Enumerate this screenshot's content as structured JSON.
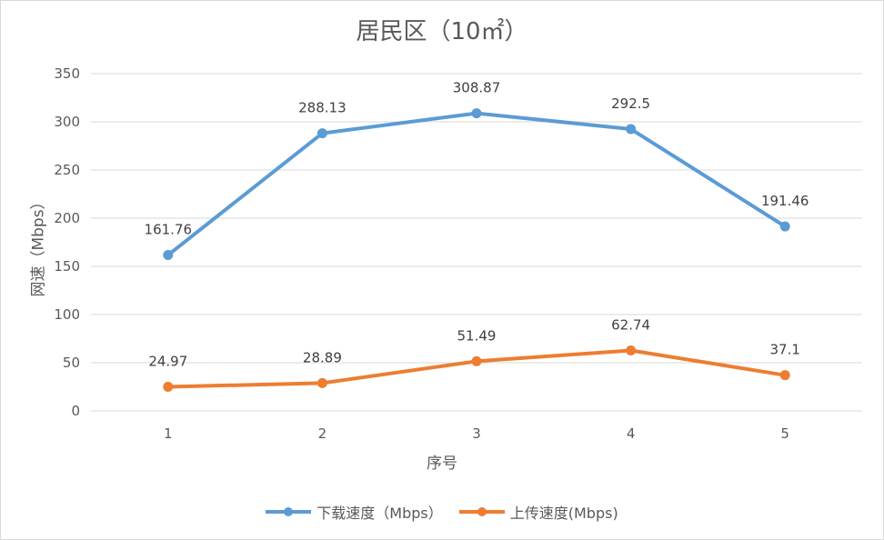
{
  "chart_data": {
    "type": "line",
    "title": "居民区（10㎡）",
    "xlabel": "序号",
    "ylabel": "网速（Mbps）",
    "categories": [
      "1",
      "2",
      "3",
      "4",
      "5"
    ],
    "ylim": [
      0,
      350
    ],
    "yticks": [
      "0",
      "50",
      "100",
      "150",
      "200",
      "250",
      "300",
      "350"
    ],
    "grid": true,
    "legend_position": "bottom",
    "series": [
      {
        "name": "下载速度（Mbps）",
        "color": "#5b9bd5",
        "values": [
          161.76,
          288.13,
          308.87,
          292.5,
          191.46
        ],
        "labels": [
          "161.76",
          "288.13",
          "308.87",
          "292.5",
          "191.46"
        ]
      },
      {
        "name": "上传速度(Mbps)",
        "color": "#ed7d31",
        "values": [
          24.97,
          28.89,
          51.49,
          62.74,
          37.1
        ],
        "labels": [
          "24.97",
          "28.89",
          "51.49",
          "62.74",
          "37.1"
        ]
      }
    ]
  }
}
